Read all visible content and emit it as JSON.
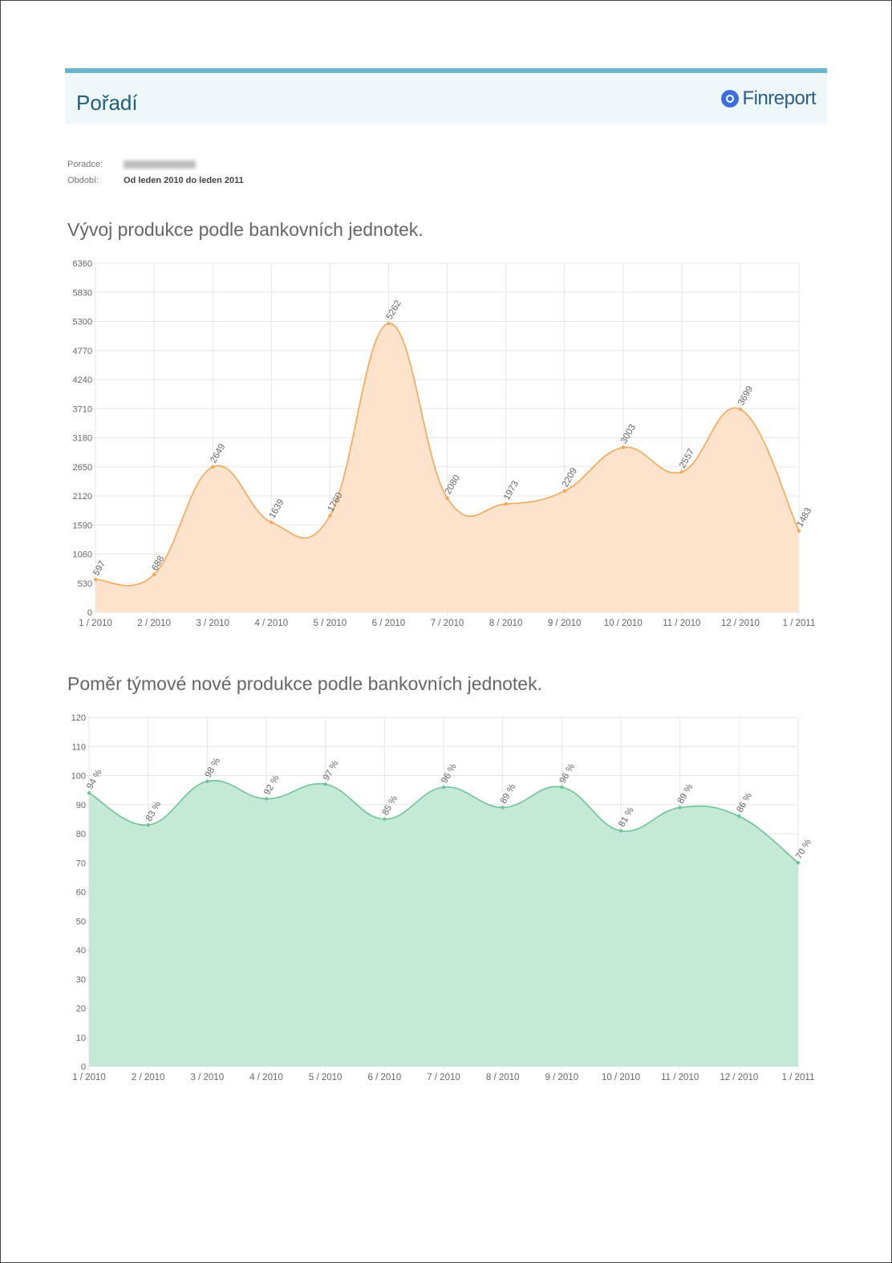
{
  "header": {
    "title": "Pořadí",
    "logo_text": "Finreport"
  },
  "info": {
    "advisor_label": "Poradce:",
    "period_label": "Období:",
    "period_value": "Od leden 2010 do leden 2011"
  },
  "chart_data": [
    {
      "type": "area",
      "title": "Vývoj produkce podle bankovních jednotek.",
      "categories": [
        "1 / 2010",
        "2 / 2010",
        "3 / 2010",
        "4 / 2010",
        "5 / 2010",
        "6 / 2010",
        "7 / 2010",
        "8 / 2010",
        "9 / 2010",
        "10 / 2010",
        "11 / 2010",
        "12 / 2010",
        "1 / 2011"
      ],
      "values": [
        597,
        688,
        2649,
        1639,
        1760,
        5262,
        2080,
        1973,
        2209,
        3003,
        2557,
        3699,
        1483
      ],
      "yticks": [
        0,
        530,
        1060,
        1590,
        2120,
        2650,
        3180,
        3710,
        4240,
        4770,
        5300,
        5830,
        6360
      ],
      "ylim": [
        0,
        6360
      ],
      "label_suffix": "",
      "color": "#f5a85a",
      "fill": "#fde3cb",
      "grid": true
    },
    {
      "type": "area",
      "title": "Poměr týmové nové produkce podle bankovních jednotek.",
      "categories": [
        "1 / 2010",
        "2 / 2010",
        "3 / 2010",
        "4 / 2010",
        "5 / 2010",
        "6 / 2010",
        "7 / 2010",
        "8 / 2010",
        "9 / 2010",
        "10 / 2010",
        "11 / 2010",
        "12 / 2010",
        "1 / 2011"
      ],
      "values": [
        94,
        83,
        98,
        92,
        97,
        85,
        96,
        89,
        96,
        81,
        89,
        86,
        70
      ],
      "yticks": [
        0,
        10,
        20,
        30,
        40,
        50,
        60,
        70,
        80,
        90,
        100,
        110,
        120
      ],
      "ylim": [
        0,
        120
      ],
      "label_suffix": " %",
      "color": "#6cc497",
      "fill": "#c4ead7",
      "grid": true
    }
  ]
}
